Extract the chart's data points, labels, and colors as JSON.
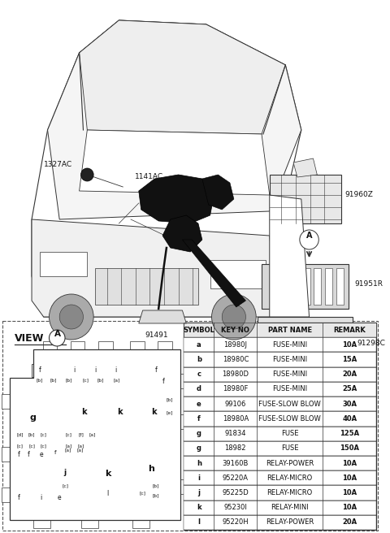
{
  "bg_color": "#ffffff",
  "line_color": "#333333",
  "table_headers": [
    "SYMBOL",
    "KEY NO",
    "PART NAME",
    "REMARK"
  ],
  "table_rows": [
    [
      "a",
      "18980J",
      "FUSE-MINI",
      "10A"
    ],
    [
      "b",
      "18980C",
      "FUSE-MINI",
      "15A"
    ],
    [
      "c",
      "18980D",
      "FUSE-MINI",
      "20A"
    ],
    [
      "d",
      "18980F",
      "FUSE-MINI",
      "25A"
    ],
    [
      "e",
      "99106",
      "FUSE-SLOW BLOW",
      "30A"
    ],
    [
      "f",
      "18980A",
      "FUSE-SLOW BLOW",
      "40A"
    ],
    [
      "g",
      "91834",
      "FUSE",
      "125A"
    ],
    [
      "g",
      "18982",
      "FUSE",
      "150A"
    ],
    [
      "h",
      "39160B",
      "RELAY-POWER",
      "10A"
    ],
    [
      "i",
      "95220A",
      "RELAY-MICRO",
      "10A"
    ],
    [
      "j",
      "95225D",
      "RELAY-MICRO",
      "10A"
    ],
    [
      "k",
      "95230I",
      "RELAY-MINI",
      "10A"
    ],
    [
      "l",
      "95220H",
      "RELAY-POWER",
      "20A"
    ]
  ],
  "font_size_labels": 6.5,
  "font_size_table": 6.0,
  "font_size_small": 4.5
}
